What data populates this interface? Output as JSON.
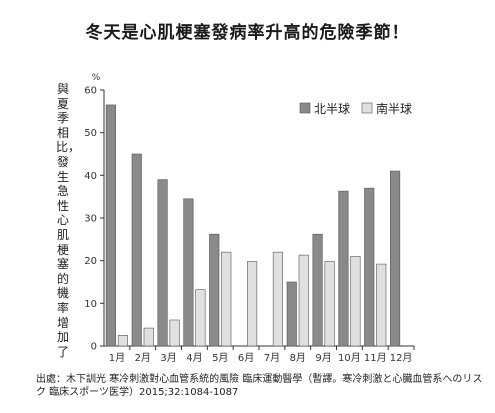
{
  "title": "冬天是心肌梗塞發病率升高的危險季節！",
  "chart_data": {
    "type": "bar",
    "ylabel": "與夏季相比，發生急性心肌梗塞的機率增加了",
    "yunit": "%",
    "ylim": [
      0,
      60
    ],
    "yticks": [
      0,
      10,
      20,
      30,
      40,
      50,
      60
    ],
    "grid": false,
    "legend_position": "top-right",
    "categories": [
      "1月",
      "2月",
      "3月",
      "4月",
      "5月",
      "6月",
      "7月",
      "8月",
      "9月",
      "10月",
      "11月",
      "12月"
    ],
    "series": [
      {
        "name": "北半球",
        "color": "#8a8a8a",
        "values": [
          56.5,
          45,
          39,
          34.5,
          26.2,
          null,
          null,
          15,
          26.2,
          36.3,
          37,
          41
        ]
      },
      {
        "name": "南半球",
        "color": "#e0e0e0",
        "values": [
          2.5,
          4.2,
          6.1,
          13.2,
          22,
          19.8,
          22,
          21.3,
          19.8,
          21,
          19.2,
          null
        ]
      }
    ]
  },
  "source": "出處：木下訓光 寒冷刺激對心血管系統的風險 臨床運動醫學（暫譯。寒冷刺激と心臓血管系へのリスク 臨床スポーツ医学）2015;32:1084-1087"
}
